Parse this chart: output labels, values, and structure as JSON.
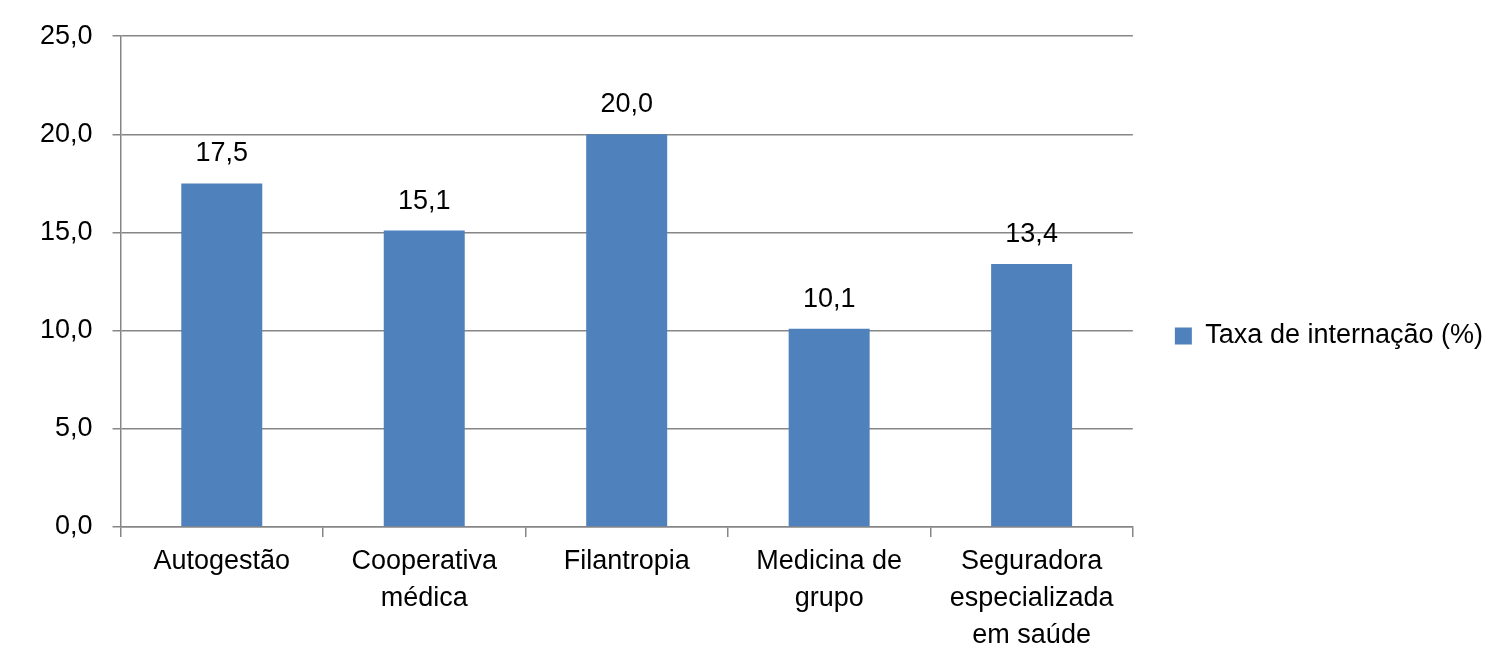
{
  "chart_data": {
    "type": "bar",
    "categories": [
      "Autogestão",
      "Cooperativa médica",
      "Filantropia",
      "Medicina de grupo",
      "Seguradora especializada em saúde"
    ],
    "series": [
      {
        "name": "Taxa de internação (%)",
        "color": "#4f81bd",
        "values": [
          17.5,
          15.1,
          20.0,
          10.1,
          13.4
        ],
        "value_labels": [
          "17,5",
          "15,1",
          "20,0",
          "10,1",
          "13,4"
        ]
      }
    ],
    "ylim": [
      0,
      25
    ],
    "yticks": [
      {
        "value": 0,
        "label": "0,0"
      },
      {
        "value": 5,
        "label": "5,0"
      },
      {
        "value": 10,
        "label": "10,0"
      },
      {
        "value": 15,
        "label": "15,0"
      },
      {
        "value": 20,
        "label": "20,0"
      },
      {
        "value": 25,
        "label": "25,0"
      }
    ],
    "grid": "y",
    "legend": "right"
  }
}
